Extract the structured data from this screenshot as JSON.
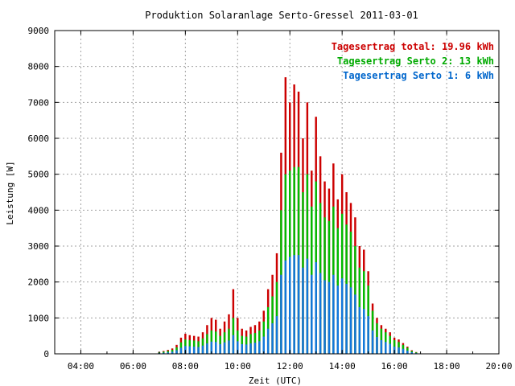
{
  "chart_data": {
    "type": "bar",
    "title": "Produktion Solaranlage Serto-Gressel 2011-03-01",
    "xlabel": "Zeit (UTC)",
    "ylabel": "Leistung [W]",
    "x_ticks": [
      "04:00",
      "06:00",
      "08:00",
      "10:00",
      "12:00",
      "14:00",
      "16:00",
      "18:00",
      "20:00"
    ],
    "x_range_hours": [
      3,
      20
    ],
    "y_ticks": [
      "0",
      "1000",
      "2000",
      "3000",
      "4000",
      "5000",
      "6000",
      "7000",
      "8000",
      "9000"
    ],
    "ylim": [
      0,
      9000
    ],
    "grid": true,
    "legend_position": "top-right",
    "legend": [
      {
        "label": "Tagesertrag total: 19.96 kWh",
        "color": "#cc0000"
      },
      {
        "label": "Tagesertrag Serto 2: 13 kWh",
        "color": "#00aa00"
      },
      {
        "label": "Tagesertrag Serto 1: 6 kWh",
        "color": "#0066cc"
      }
    ],
    "series_colors": {
      "total": "#cc0000",
      "serto2": "#00bb00",
      "serto1": "#1177dd"
    },
    "time": [
      "07:00",
      "07:10",
      "07:20",
      "07:30",
      "07:40",
      "07:50",
      "08:00",
      "08:10",
      "08:20",
      "08:30",
      "08:40",
      "08:50",
      "09:00",
      "09:10",
      "09:20",
      "09:30",
      "09:40",
      "09:50",
      "10:00",
      "10:10",
      "10:20",
      "10:30",
      "10:40",
      "10:50",
      "11:00",
      "11:10",
      "11:20",
      "11:30",
      "11:40",
      "11:50",
      "12:00",
      "12:10",
      "12:20",
      "12:30",
      "12:40",
      "12:50",
      "13:00",
      "13:10",
      "13:20",
      "13:30",
      "13:40",
      "13:50",
      "14:00",
      "14:10",
      "14:20",
      "14:30",
      "14:40",
      "14:50",
      "15:00",
      "15:10",
      "15:20",
      "15:30",
      "15:40",
      "15:50",
      "16:00",
      "16:10",
      "16:20",
      "16:30",
      "16:40",
      "16:50"
    ],
    "total": [
      50,
      80,
      110,
      150,
      250,
      450,
      560,
      520,
      500,
      480,
      600,
      800,
      1000,
      950,
      700,
      900,
      1100,
      1800,
      1000,
      700,
      650,
      750,
      800,
      900,
      1200,
      1800,
      2200,
      2800,
      5600,
      7700,
      7000,
      7500,
      7300,
      6000,
      7000,
      5100,
      6600,
      5500,
      4800,
      4600,
      5300,
      4300,
      5000,
      4500,
      4200,
      3800,
      3000,
      2900,
      2300,
      1400,
      1000,
      800,
      700,
      600,
      450,
      400,
      300,
      200,
      100,
      50
    ],
    "serto2": [
      40,
      60,
      80,
      110,
      180,
      320,
      400,
      380,
      370,
      350,
      430,
      550,
      650,
      620,
      500,
      600,
      700,
      1000,
      650,
      500,
      480,
      550,
      580,
      650,
      900,
      1300,
      1600,
      2000,
      4000,
      5000,
      5100,
      5200,
      5200,
      4500,
      5000,
      4100,
      4800,
      4200,
      3800,
      3700,
      4100,
      3500,
      3900,
      3600,
      3400,
      3000,
      2400,
      2300,
      1900,
      1200,
      850,
      700,
      600,
      500,
      380,
      330,
      250,
      170,
      80,
      40
    ],
    "serto1": [
      20,
      30,
      40,
      60,
      100,
      170,
      220,
      210,
      200,
      190,
      230,
      290,
      340,
      330,
      270,
      320,
      370,
      520,
      350,
      270,
      260,
      290,
      310,
      350,
      480,
      700,
      850,
      1050,
      2200,
      2600,
      2700,
      2750,
      2750,
      2400,
      2650,
      2200,
      2550,
      2250,
      2050,
      2000,
      2200,
      1900,
      2100,
      1950,
      1850,
      1650,
      1300,
      1250,
      1050,
      650,
      470,
      380,
      330,
      280,
      200,
      180,
      140,
      90,
      45,
      20
    ]
  }
}
